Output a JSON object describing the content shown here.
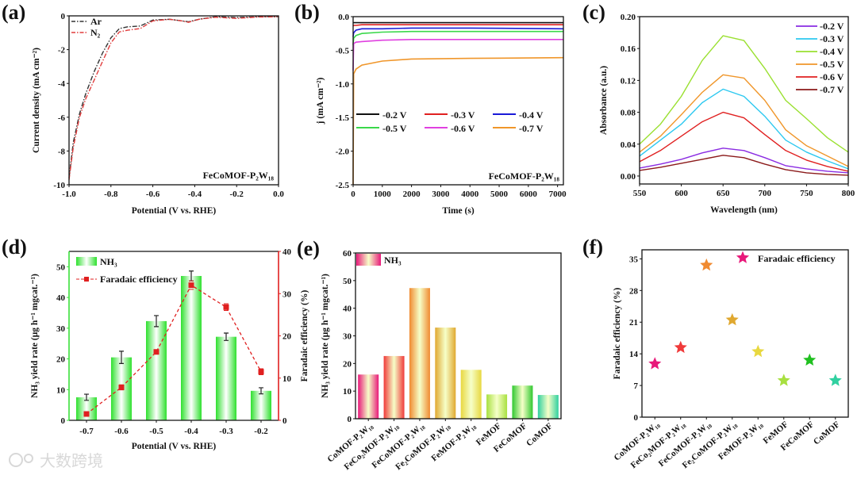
{
  "figure": {
    "panel_labels": [
      "(a)",
      "(b)",
      "(c)",
      "(d)",
      "(e)",
      "(f)"
    ],
    "watermark": "大数跨境"
  },
  "chart_data": [
    {
      "type": "line",
      "xlabel": "Potential (V vs. RHE)",
      "ylabel": "Current density (mA cm⁻²)",
      "xlim": [
        -1.0,
        0.0
      ],
      "ylim": [
        -10,
        0
      ],
      "xticks": [
        "-1.0",
        "-0.8",
        "-0.6",
        "-0.4",
        "-0.2",
        "0.0"
      ],
      "yticks": [
        "-10",
        "-8",
        "-6",
        "-4",
        "-2",
        "0"
      ],
      "annotation": "FeCoMOF-P₂W₁₈",
      "legend_position": "top-left",
      "series": [
        {
          "name": "Ar",
          "color": "#333333",
          "x": [
            -1.0,
            -0.98,
            -0.95,
            -0.92,
            -0.88,
            -0.84,
            -0.8,
            -0.76,
            -0.72,
            -0.66,
            -0.6,
            -0.52,
            -0.46,
            -0.43,
            -0.38,
            -0.3,
            -0.2,
            -0.1,
            0.0
          ],
          "y": [
            -9.6,
            -7.5,
            -5.8,
            -4.6,
            -3.3,
            -2.2,
            -1.3,
            -0.75,
            -0.65,
            -0.6,
            -0.25,
            -0.2,
            -0.3,
            -0.35,
            -0.2,
            -0.05,
            -0.1,
            -0.05,
            -0.05
          ]
        },
        {
          "name": "N₂",
          "color": "#e03c3c",
          "x": [
            -1.0,
            -0.98,
            -0.95,
            -0.92,
            -0.88,
            -0.84,
            -0.8,
            -0.76,
            -0.72,
            -0.66,
            -0.6,
            -0.52,
            -0.46,
            -0.43,
            -0.38,
            -0.3,
            -0.2,
            -0.1,
            0.0
          ],
          "y": [
            -9.7,
            -7.8,
            -6.0,
            -4.9,
            -3.8,
            -2.7,
            -1.6,
            -0.95,
            -0.85,
            -0.75,
            -0.3,
            -0.2,
            -0.3,
            -0.38,
            -0.2,
            -0.08,
            -0.15,
            -0.07,
            -0.05
          ]
        }
      ]
    },
    {
      "type": "line",
      "xlabel": "Time (s)",
      "ylabel": "j (mA cm⁻²)",
      "xlim": [
        0,
        7200
      ],
      "ylim": [
        -2.5,
        0
      ],
      "xticks": [
        "0",
        "1000",
        "2000",
        "3000",
        "4000",
        "5000",
        "6000",
        "7000"
      ],
      "yticks": [
        "-2.5",
        "-2.0",
        "-1.5",
        "-1.0",
        "-0.5",
        "0.0"
      ],
      "annotation": "FeCoMOF-P₂W₁₈",
      "legend_position": "center",
      "x": [
        0,
        20,
        100,
        300,
        1000,
        2000,
        4000,
        7200
      ],
      "series": [
        {
          "name": "-0.2 V",
          "color": "#111111",
          "y": [
            -0.09,
            -0.09,
            -0.09,
            -0.09,
            -0.09,
            -0.09,
            -0.09,
            -0.09
          ]
        },
        {
          "name": "-0.3 V",
          "color": "#e02020",
          "y": [
            -0.14,
            -0.13,
            -0.13,
            -0.12,
            -0.12,
            -0.12,
            -0.12,
            -0.12
          ]
        },
        {
          "name": "-0.4 V",
          "color": "#1a1ad8",
          "y": [
            -0.3,
            -0.24,
            -0.2,
            -0.18,
            -0.18,
            -0.17,
            -0.17,
            -0.18
          ]
        },
        {
          "name": "-0.5 V",
          "color": "#3ad84a",
          "y": [
            -0.42,
            -0.32,
            -0.28,
            -0.25,
            -0.23,
            -0.22,
            -0.22,
            -0.22
          ]
        },
        {
          "name": "-0.6 V",
          "color": "#e040e0",
          "y": [
            -0.8,
            -0.4,
            -0.38,
            -0.37,
            -0.35,
            -0.34,
            -0.34,
            -0.34
          ]
        },
        {
          "name": "-0.7 V",
          "color": "#f0962a",
          "y": [
            -2.5,
            -0.85,
            -0.78,
            -0.72,
            -0.66,
            -0.63,
            -0.62,
            -0.61
          ]
        }
      ]
    },
    {
      "type": "line",
      "xlabel": "Wavelength (nm)",
      "ylabel": "Absorbance (a.u.)",
      "xlim": [
        550,
        800
      ],
      "ylim": [
        -0.01,
        0.2
      ],
      "xticks": [
        "550",
        "600",
        "650",
        "700",
        "750",
        "800"
      ],
      "yticks": [
        "0.00",
        "0.04",
        "0.08",
        "0.12",
        "0.16",
        "0.20"
      ],
      "legend_position": "top-right",
      "x": [
        550,
        575,
        600,
        625,
        650,
        675,
        700,
        725,
        750,
        775,
        800
      ],
      "series": [
        {
          "name": "-0.2 V",
          "color": "#8a2be2",
          "y": [
            0.01,
            0.015,
            0.021,
            0.029,
            0.035,
            0.032,
            0.023,
            0.013,
            0.009,
            0.006,
            0.004
          ]
        },
        {
          "name": "-0.3 V",
          "color": "#2cc8f0",
          "y": [
            0.025,
            0.045,
            0.065,
            0.092,
            0.109,
            0.1,
            0.075,
            0.045,
            0.03,
            0.019,
            0.009
          ]
        },
        {
          "name": "-0.4 V",
          "color": "#9ae030",
          "y": [
            0.04,
            0.065,
            0.1,
            0.145,
            0.176,
            0.17,
            0.135,
            0.095,
            0.072,
            0.048,
            0.03
          ]
        },
        {
          "name": "-0.5 V",
          "color": "#f0962a",
          "y": [
            0.03,
            0.05,
            0.077,
            0.105,
            0.127,
            0.123,
            0.095,
            0.058,
            0.038,
            0.025,
            0.012
          ]
        },
        {
          "name": "-0.6 V",
          "color": "#e02020",
          "y": [
            0.018,
            0.032,
            0.05,
            0.068,
            0.08,
            0.073,
            0.052,
            0.032,
            0.02,
            0.012,
            0.006
          ]
        },
        {
          "name": "-0.7 V",
          "color": "#8b1a1a",
          "y": [
            0.007,
            0.011,
            0.016,
            0.021,
            0.026,
            0.023,
            0.015,
            0.008,
            0.004,
            0.002,
            0.001
          ]
        }
      ]
    },
    {
      "type": "bar",
      "xlabel": "Potential (V vs. RHE)",
      "ylabel": "NH₃ yield rate (μg h⁻¹ mgcat.⁻¹)",
      "ylabel_right": "Faradaic efficiency (%)",
      "categories": [
        "-0.7",
        "-0.6",
        "-0.5",
        "-0.4",
        "-0.3",
        "-0.2"
      ],
      "ylim": [
        0,
        55
      ],
      "ylim_right": [
        0,
        40
      ],
      "yticks": [
        "0",
        "10",
        "20",
        "30",
        "40",
        "50"
      ],
      "yticks_right": [
        "0",
        "10",
        "20",
        "30",
        "40"
      ],
      "legend_position": "top-left",
      "bar_series": {
        "name": "NH₃",
        "color": "#3ae03a",
        "values": [
          7.5,
          20.5,
          32.3,
          47.0,
          27.2,
          9.6
        ],
        "errors": [
          1.0,
          2.0,
          1.8,
          1.6,
          1.2,
          1.0
        ]
      },
      "line_series": {
        "name": "Faradaic efficiency",
        "color": "#e02020",
        "values": [
          1.5,
          7.8,
          16.2,
          32.0,
          26.8,
          11.5
        ],
        "errors": [
          0.3,
          0.6,
          0.5,
          1.0,
          0.8,
          0.7
        ]
      }
    },
    {
      "type": "bar",
      "xlabel": "",
      "ylabel": "NH₃ yield rate (μg h⁻¹ mgcat.⁻¹)",
      "categories": [
        "CoMOF-P₂W₁₈",
        "FeCo₂MOF-P₂W₁₈",
        "FeCoMOF-P₂W₁₈",
        "Fe₂CoMOF-P₂W₁₈",
        "FeMOF-P₂W₁₈",
        "FeMOF",
        "FeCoMOF",
        "CoMOF"
      ],
      "values": [
        16.0,
        22.7,
        47.3,
        33.0,
        17.7,
        8.8,
        12.0,
        8.6
      ],
      "colors": [
        "#e8197a",
        "#f03a3a",
        "#f08a30",
        "#e0a830",
        "#e8d840",
        "#a8e040",
        "#30c830",
        "#30d0a0"
      ],
      "ylim": [
        0,
        60
      ],
      "yticks": [
        "0",
        "10",
        "20",
        "30",
        "40",
        "50",
        "60"
      ],
      "legend": "NH₃",
      "legend_position": "top-left"
    },
    {
      "type": "scatter",
      "xlabel": "",
      "ylabel": "Faradaic efficiency (%)",
      "categories": [
        "CoMOF-P₂W₁₈",
        "FeCo₂MOF-P₂W₁₈",
        "FeCoMOF-P₂W₁₈",
        "Fe₂CoMOF-P₂W₁₈",
        "FeMOF-P₂W₁₈",
        "FeMOF",
        "FeCoMOF",
        "CoMOF"
      ],
      "values": [
        11.8,
        15.4,
        33.6,
        21.5,
        14.5,
        8.1,
        12.6,
        8.1
      ],
      "colors": [
        "#e8197a",
        "#f03a3a",
        "#f08a30",
        "#e0a830",
        "#e8d840",
        "#a8e040",
        "#20c020",
        "#30d0a0"
      ],
      "ylim": [
        0,
        37
      ],
      "yticks": [
        "0",
        "7",
        "14",
        "21",
        "28",
        "35"
      ],
      "legend": "Faradaic efficiency",
      "legend_color": "#e8197a",
      "legend_position": "top-right"
    }
  ]
}
